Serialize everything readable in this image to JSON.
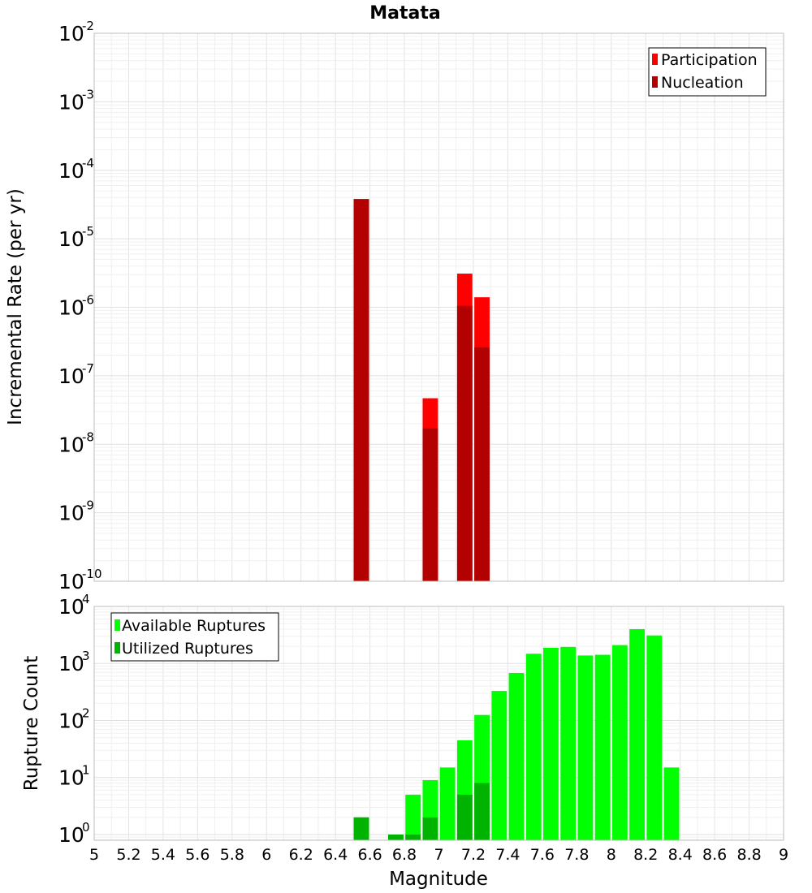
{
  "chart_data": {
    "title": "Matata",
    "xlabel": "Magnitude",
    "xlim": [
      5,
      9
    ],
    "xticks": [
      "5",
      "5.2",
      "5.4",
      "5.6",
      "5.8",
      "6",
      "6.2",
      "6.4",
      "6.6",
      "6.8",
      "7",
      "7.2",
      "7.4",
      "7.6",
      "7.8",
      "8",
      "8.2",
      "8.4",
      "8.6",
      "8.8",
      "9"
    ],
    "bin_width": 0.1,
    "grid": true,
    "panels": [
      {
        "type": "bar",
        "ylabel": "Incremental Rate (per yr)",
        "yscale": "log",
        "ylim_exp": [
          -10,
          -2
        ],
        "ytick_base": "10",
        "ytick_exponents": [
          "-2",
          "-3",
          "-4",
          "-5",
          "-6",
          "-7",
          "-8",
          "-9",
          "-10"
        ],
        "legend_position": "top-right",
        "series": [
          {
            "name": "Participation",
            "color": "#ff0000",
            "points": [
              {
                "x": 6.55,
                "y": 3.8e-05
              },
              {
                "x": 6.95,
                "y": 4.7e-08
              },
              {
                "x": 7.15,
                "y": 3.1e-06
              },
              {
                "x": 7.25,
                "y": 1.4e-06
              }
            ]
          },
          {
            "name": "Nucleation",
            "color": "#b30000",
            "points": [
              {
                "x": 6.55,
                "y": 3.8e-05
              },
              {
                "x": 6.95,
                "y": 1.7e-08
              },
              {
                "x": 7.15,
                "y": 1.05e-06
              },
              {
                "x": 7.25,
                "y": 2.6e-07
              }
            ]
          }
        ]
      },
      {
        "type": "bar",
        "ylabel": "Rupture Count",
        "yscale": "log",
        "ylim_exp": [
          -0.1,
          4
        ],
        "ytick_base": "10",
        "ytick_exponents": [
          "4",
          "3",
          "2",
          "1",
          "0"
        ],
        "legend_position": "top-left",
        "series": [
          {
            "name": "Available Ruptures",
            "color": "#00ff00",
            "points": [
              {
                "x": 6.55,
                "y": 2
              },
              {
                "x": 6.75,
                "y": 1
              },
              {
                "x": 6.85,
                "y": 5
              },
              {
                "x": 6.95,
                "y": 9
              },
              {
                "x": 7.05,
                "y": 15
              },
              {
                "x": 7.15,
                "y": 45
              },
              {
                "x": 7.25,
                "y": 125
              },
              {
                "x": 7.35,
                "y": 330
              },
              {
                "x": 7.45,
                "y": 680
              },
              {
                "x": 7.55,
                "y": 1480
              },
              {
                "x": 7.65,
                "y": 1880
              },
              {
                "x": 7.75,
                "y": 1950
              },
              {
                "x": 7.85,
                "y": 1380
              },
              {
                "x": 7.95,
                "y": 1420
              },
              {
                "x": 8.05,
                "y": 2100
              },
              {
                "x": 8.15,
                "y": 4000
              },
              {
                "x": 8.25,
                "y": 3100
              },
              {
                "x": 8.35,
                "y": 15
              }
            ]
          },
          {
            "name": "Utilized Ruptures",
            "color": "#00b300",
            "points": [
              {
                "x": 6.55,
                "y": 2
              },
              {
                "x": 6.75,
                "y": 1
              },
              {
                "x": 6.85,
                "y": 1
              },
              {
                "x": 6.95,
                "y": 2
              },
              {
                "x": 7.15,
                "y": 5
              },
              {
                "x": 7.25,
                "y": 8
              }
            ]
          }
        ]
      }
    ]
  }
}
